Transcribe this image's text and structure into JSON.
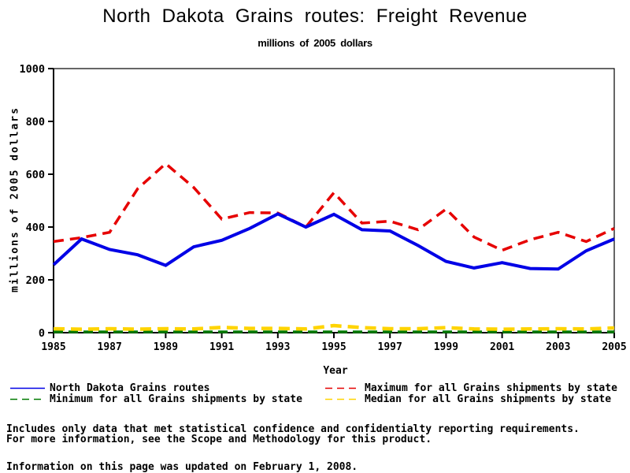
{
  "title": "North Dakota Grains routes: Freight Revenue",
  "subtitle": "millions of 2005 dollars",
  "chart_data": {
    "type": "line",
    "title": "North Dakota Grains routes: Freight Revenue",
    "subtitle": "millions of 2005 dollars",
    "xlabel": "Year",
    "ylabel": "millions of 2005 dollars",
    "xlim": [
      1985,
      2005
    ],
    "ylim": [
      0,
      1000
    ],
    "xticks": [
      1985,
      1987,
      1989,
      1991,
      1993,
      1995,
      1997,
      1999,
      2001,
      2003,
      2005
    ],
    "yticks": [
      0,
      200,
      400,
      600,
      800,
      1000
    ],
    "grid": false,
    "legend_position": "bottom",
    "x": [
      1985,
      1986,
      1987,
      1988,
      1989,
      1990,
      1991,
      1992,
      1993,
      1994,
      1995,
      1996,
      1997,
      1998,
      1999,
      2000,
      2001,
      2002,
      2003,
      2004,
      2005
    ],
    "series": [
      {
        "name": "North Dakota Grains routes",
        "color": "#0000e6",
        "dash": "none",
        "width": 4,
        "values": [
          257,
          355,
          315,
          295,
          255,
          325,
          350,
          395,
          450,
          400,
          448,
          390,
          385,
          330,
          270,
          245,
          265,
          243,
          241,
          310,
          355
        ]
      },
      {
        "name": "Maximum for all Grains shipments by state",
        "color": "#e60000",
        "dash": "13,8",
        "width": 3.5,
        "values": [
          345,
          360,
          380,
          545,
          640,
          550,
          430,
          455,
          453,
          400,
          530,
          415,
          422,
          390,
          468,
          362,
          312,
          352,
          380,
          345,
          395
        ]
      },
      {
        "name": "Minimum for all Grains shipments by state",
        "color": "#007a00",
        "dash": "12,7",
        "width": 3.5,
        "values": [
          3,
          3,
          3,
          3,
          3,
          3,
          3,
          3,
          3,
          3,
          3,
          3,
          3,
          3,
          3,
          3,
          3,
          3,
          3,
          3,
          3
        ]
      },
      {
        "name": "Median for all Grains shipments by state",
        "color": "#ffd400",
        "dash": "14,8",
        "width": 4.5,
        "values": [
          15,
          13,
          15,
          13,
          15,
          14,
          20,
          16,
          16,
          14,
          27,
          19,
          15,
          15,
          19,
          14,
          13,
          14,
          15,
          14,
          18
        ]
      }
    ]
  },
  "footer": {
    "note_line1": "Includes only data that met statistical confidence and confidentialty reporting requirements.",
    "note_line2": "For more information, see the Scope and Methodology for this product.",
    "updated": "Information on this page was updated on February 1, 2008."
  }
}
